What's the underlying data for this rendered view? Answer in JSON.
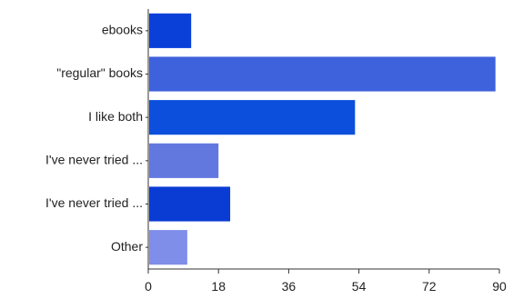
{
  "chart_data": {
    "type": "bar",
    "orientation": "horizontal",
    "categories": [
      "ebooks",
      "\"regular\" books",
      "I like both",
      "I've never tried ...",
      "I've never tried ...",
      "Other"
    ],
    "values": [
      11,
      89,
      53,
      18,
      21,
      10
    ],
    "colors": [
      "#0a3fd8",
      "#3e62dc",
      "#0b4fdc",
      "#6378df",
      "#0a3cd4",
      "#7f8ee8"
    ],
    "xlim": [
      0,
      90
    ],
    "xticks": [
      "0",
      "18",
      "36",
      "54",
      "72",
      "90"
    ],
    "grid": false,
    "legend": "none"
  }
}
